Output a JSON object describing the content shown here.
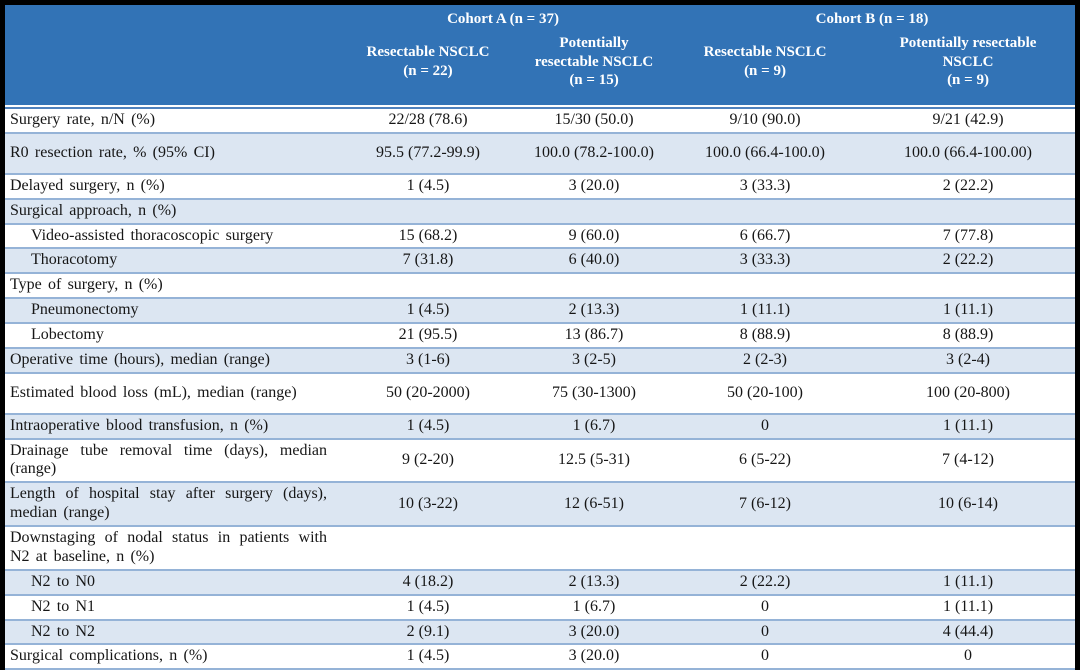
{
  "header": {
    "cohort_a": "Cohort A (n = 37)",
    "cohort_b": "Cohort B (n = 18)",
    "columns": [
      {
        "name": "Resectable NSCLC",
        "n": "(n = 22)"
      },
      {
        "name": "Potentially resectable NSCLC",
        "n": "(n = 15)"
      },
      {
        "name": "Resectable NSCLC",
        "n": "(n = 9)"
      },
      {
        "name": "Potentially resectable NSCLC",
        "n": "(n = 9)"
      }
    ]
  },
  "rows": [
    {
      "label": "Surgery rate, n/N (%)",
      "values": [
        "22/28 (78.6)",
        "15/30 (50.0)",
        "9/10 (90.0)",
        "9/21 (42.9)"
      ],
      "indent": false,
      "tall": false
    },
    {
      "label": "R0 resection rate, % (95% CI)",
      "values": [
        "95.5 (77.2-99.9)",
        "100.0 (78.2-100.0)",
        "100.0 (66.4-100.0)",
        "100.0 (66.4-100.00)"
      ],
      "indent": false,
      "tall": true
    },
    {
      "label": "Delayed surgery, n (%)",
      "values": [
        "1 (4.5)",
        "3 (20.0)",
        "3 (33.3)",
        "2 (22.2)"
      ],
      "indent": false,
      "tall": false
    },
    {
      "label": "Surgical approach, n (%)",
      "values": [
        "",
        "",
        "",
        ""
      ],
      "indent": false,
      "tall": false
    },
    {
      "label": "Video-assisted thoracoscopic surgery",
      "values": [
        "15 (68.2)",
        "9 (60.0)",
        "6 (66.7)",
        "7 (77.8)"
      ],
      "indent": true,
      "tall": false
    },
    {
      "label": "Thoracotomy",
      "values": [
        "7 (31.8)",
        "6 (40.0)",
        "3 (33.3)",
        "2 (22.2)"
      ],
      "indent": true,
      "tall": false
    },
    {
      "label": "Type of surgery, n (%)",
      "values": [
        "",
        "",
        "",
        ""
      ],
      "indent": false,
      "tall": false
    },
    {
      "label": "Pneumonectomy",
      "values": [
        "1 (4.5)",
        "2 (13.3)",
        "1 (11.1)",
        "1 (11.1)"
      ],
      "indent": true,
      "tall": false
    },
    {
      "label": "Lobectomy",
      "values": [
        "21 (95.5)",
        "13 (86.7)",
        "8 (88.9)",
        "8 (88.9)"
      ],
      "indent": true,
      "tall": false
    },
    {
      "label": "Operative time (hours), median (range)",
      "values": [
        "3 (1-6)",
        "3 (2-5)",
        "2 (2-3)",
        "3 (2-4)"
      ],
      "indent": false,
      "tall": false
    },
    {
      "label": "Estimated blood loss (mL), median (range)",
      "values": [
        "50 (20-2000)",
        "75 (30-1300)",
        "50 (20-100)",
        "100 (20-800)"
      ],
      "indent": false,
      "tall": true
    },
    {
      "label": "Intraoperative blood transfusion, n (%)",
      "values": [
        "1 (4.5)",
        "1 (6.7)",
        "0",
        "1 (11.1)"
      ],
      "indent": false,
      "tall": false
    },
    {
      "label": "Drainage tube removal time (days), median (range)",
      "values": [
        "9 (2-20)",
        "12.5 (5-31)",
        "6 (5-22)",
        "7 (4-12)"
      ],
      "indent": false,
      "tall": false
    },
    {
      "label": "Length of hospital stay after surgery (days), median (range)",
      "values": [
        "10 (3-22)",
        "12 (6-51)",
        "7 (6-12)",
        "10 (6-14)"
      ],
      "indent": false,
      "tall": false
    },
    {
      "label": "Downstaging of nodal status in patients with N2 at baseline, n (%)",
      "values": [
        "",
        "",
        "",
        ""
      ],
      "indent": false,
      "tall": false
    },
    {
      "label": "N2 to N0",
      "values": [
        "4 (18.2)",
        "2 (13.3)",
        "2 (22.2)",
        "1 (11.1)"
      ],
      "indent": true,
      "tall": false
    },
    {
      "label": "N2 to N1",
      "values": [
        "1 (4.5)",
        "1 (6.7)",
        "0",
        "1 (11.1)"
      ],
      "indent": true,
      "tall": false
    },
    {
      "label": "N2 to N2",
      "values": [
        "2 (9.1)",
        "3 (20.0)",
        "0",
        "4 (44.4)"
      ],
      "indent": true,
      "tall": false
    },
    {
      "label": "Surgical complications, n (%)",
      "values": [
        "1 (4.5)",
        "3 (20.0)",
        "0",
        "0"
      ],
      "indent": false,
      "tall": false
    }
  ],
  "colors": {
    "header_bg": "#3273B6",
    "header_text": "#FFFFFF",
    "stripe_bg": "#DCE6F2",
    "row_border": "#95B3D7",
    "header_rule": "#4F81BD",
    "frame": "#000000"
  }
}
